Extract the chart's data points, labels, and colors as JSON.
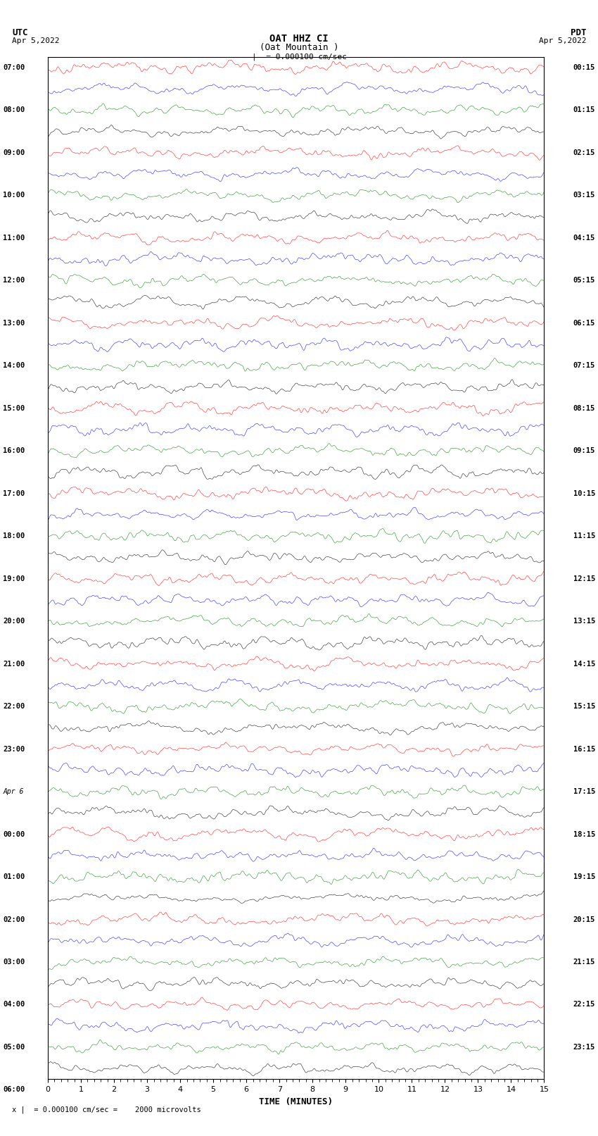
{
  "title_line1": "OAT HHZ CI",
  "title_line2": "(Oat Mountain )",
  "scale_label": "= 0.000100 cm/sec",
  "bottom_label": "= 0.000100 cm/sec =    2000 microvolts",
  "utc_label": "UTC",
  "utc_date": "Apr 5,2022",
  "pdt_label": "PDT",
  "pdt_date": "Apr 5,2022",
  "xlabel": "TIME (MINUTES)",
  "left_times": [
    "07:00",
    "08:00",
    "09:00",
    "10:00",
    "11:00",
    "12:00",
    "13:00",
    "14:00",
    "15:00",
    "16:00",
    "17:00",
    "18:00",
    "19:00",
    "20:00",
    "21:00",
    "22:00",
    "23:00",
    "Apr 6",
    "00:00",
    "01:00",
    "02:00",
    "03:00",
    "04:00",
    "05:00",
    "06:00"
  ],
  "right_times": [
    "00:15",
    "01:15",
    "02:15",
    "03:15",
    "04:15",
    "05:15",
    "06:15",
    "07:15",
    "08:15",
    "09:15",
    "10:15",
    "11:15",
    "12:15",
    "13:15",
    "14:15",
    "15:15",
    "16:15",
    "17:15",
    "18:15",
    "19:15",
    "20:15",
    "21:15",
    "22:15",
    "23:15"
  ],
  "n_rows": 48,
  "n_cols": 900,
  "colors": [
    "red",
    "blue",
    "green",
    "black"
  ],
  "bg_color": "white",
  "trace_amplitude": 0.35,
  "fig_width": 8.5,
  "fig_height": 16.13,
  "dpi": 100,
  "x_ticks": [
    0,
    1,
    2,
    3,
    4,
    5,
    6,
    7,
    8,
    9,
    10,
    11,
    12,
    13,
    14,
    15
  ],
  "x_tick_minor_interval": 0.2
}
